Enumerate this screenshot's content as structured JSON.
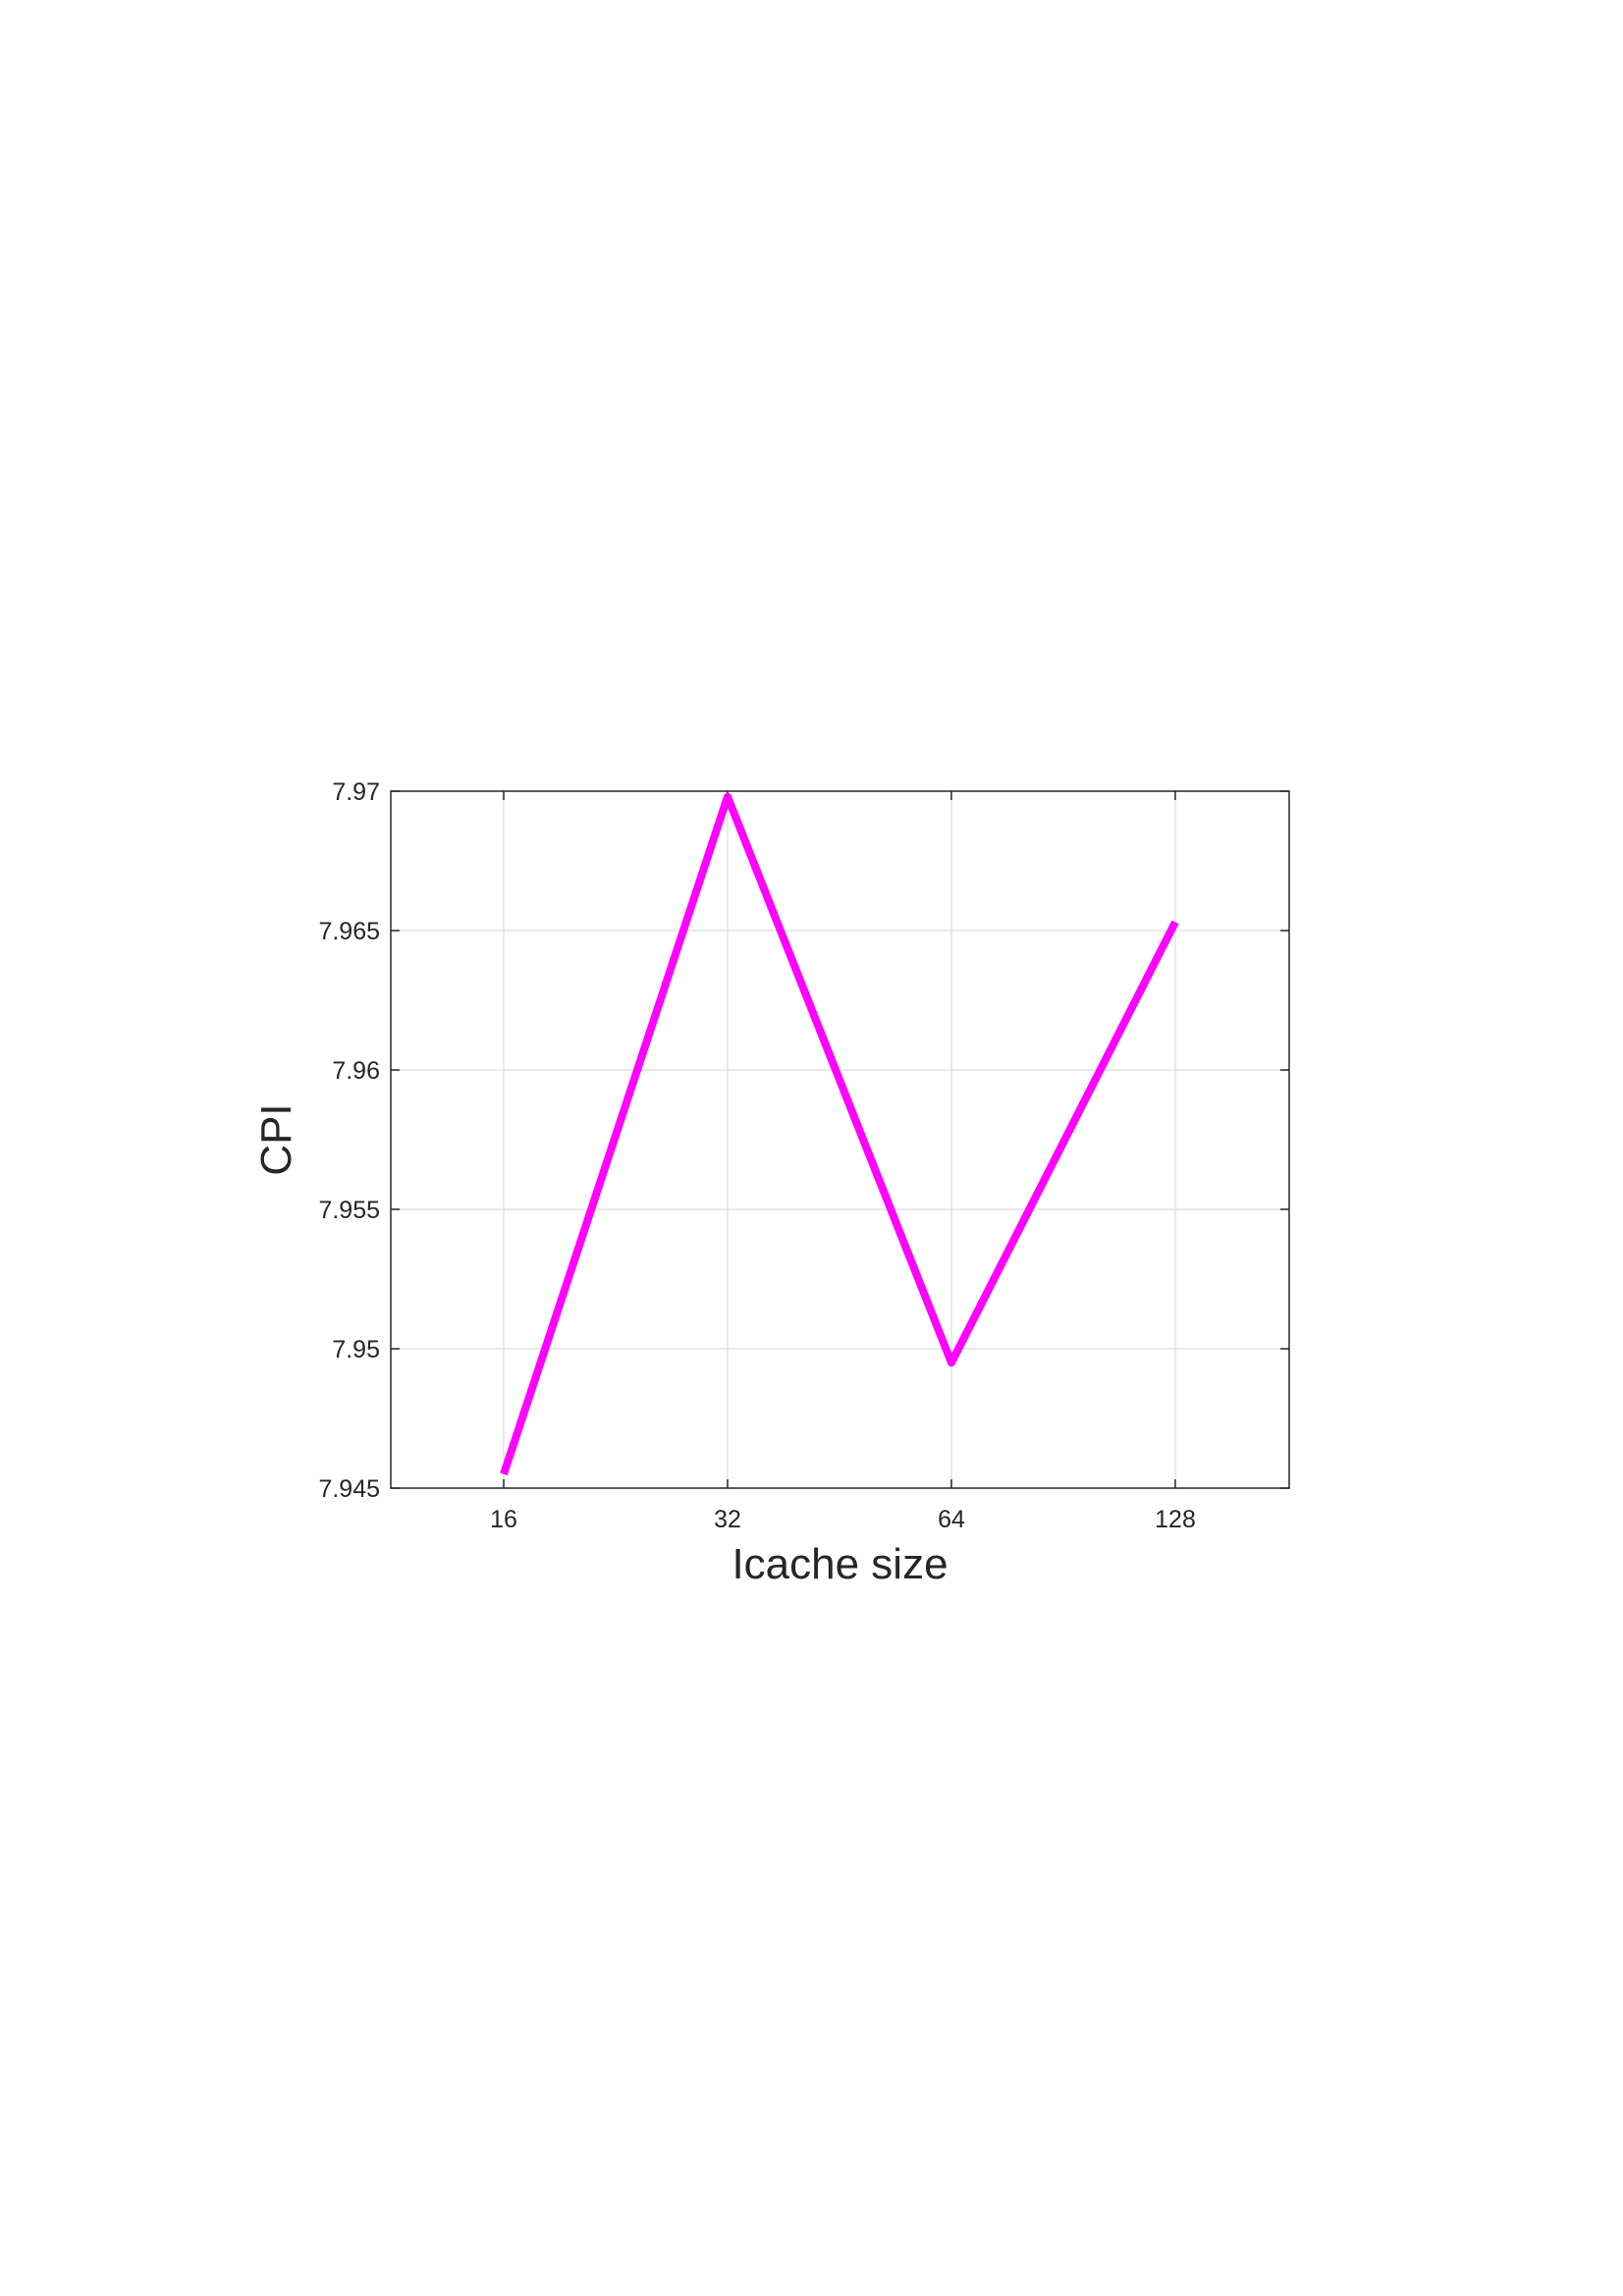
{
  "chart_data": {
    "type": "line",
    "title": "",
    "xlabel": "Icache size",
    "ylabel": "CPI",
    "categories": [
      "16",
      "32",
      "64",
      "128"
    ],
    "series": [
      {
        "values": [
          7.9455,
          7.9698,
          7.9495,
          7.9653
        ],
        "color": "#ff00ff"
      }
    ],
    "ylim": [
      7.945,
      7.97
    ],
    "yticks": [
      7.945,
      7.95,
      7.955,
      7.96,
      7.965,
      7.97
    ],
    "ytick_labels": [
      "7.945",
      "7.95",
      "7.955",
      "7.96",
      "7.965",
      "7.97"
    ],
    "grid": true,
    "legend": "none"
  }
}
